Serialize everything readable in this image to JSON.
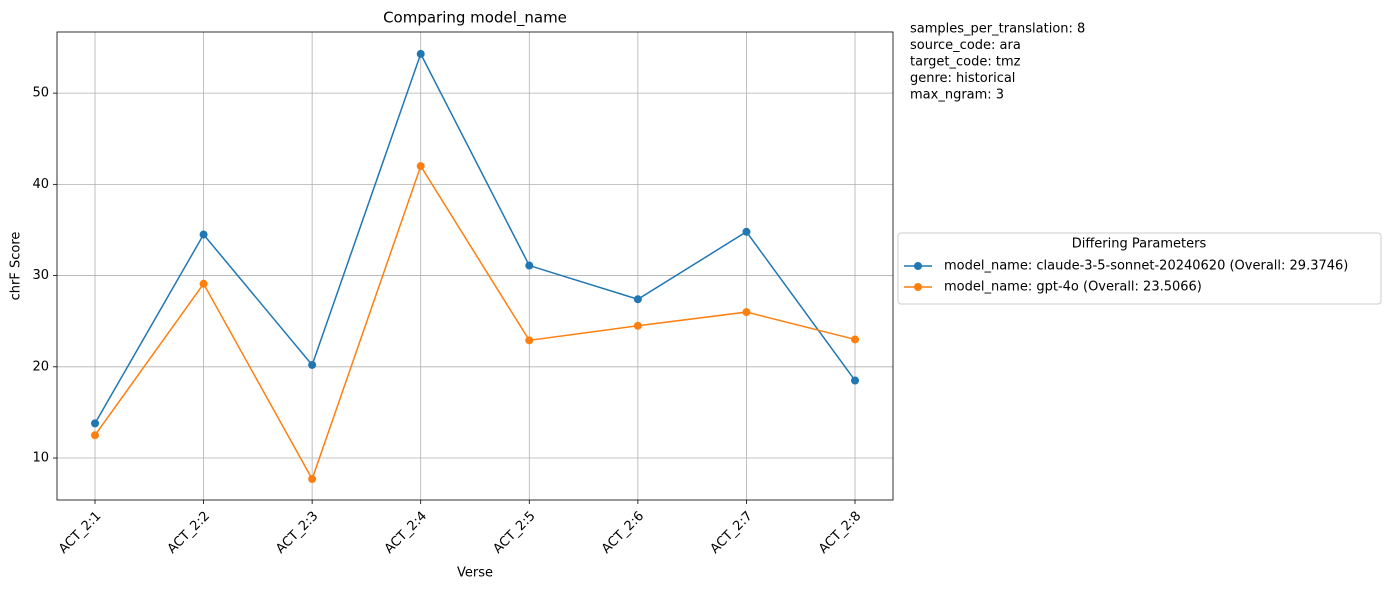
{
  "chart_data": {
    "type": "line",
    "title": "Comparing model_name",
    "xlabel": "Verse",
    "ylabel": "chrF Score",
    "categories": [
      "ACT_2:1",
      "ACT_2:2",
      "ACT_2:3",
      "ACT_2:4",
      "ACT_2:5",
      "ACT_2:6",
      "ACT_2:7",
      "ACT_2:8"
    ],
    "series": [
      {
        "name": "model_name: claude-3-5-sonnet-20240620 (Overall: 29.3746)",
        "color": "#1f77b4",
        "values": [
          13.8,
          34.5,
          20.2,
          54.3,
          31.1,
          27.4,
          34.8,
          18.5
        ]
      },
      {
        "name": "model_name: gpt-4o (Overall: 23.5066)",
        "color": "#ff7f0e",
        "values": [
          12.5,
          29.1,
          7.7,
          42.0,
          22.9,
          24.5,
          26.0,
          23.0
        ]
      }
    ],
    "ylim": [
      5.4,
      56.7
    ],
    "yticks": [
      10,
      20,
      30,
      40,
      50
    ],
    "grid": true,
    "legend_title": "Differing Parameters",
    "legend_position": "right",
    "annotations": [
      "samples_per_translation: 8",
      "source_code: ara",
      "target_code: tmz",
      "genre: historical",
      "max_ngram: 3"
    ]
  }
}
